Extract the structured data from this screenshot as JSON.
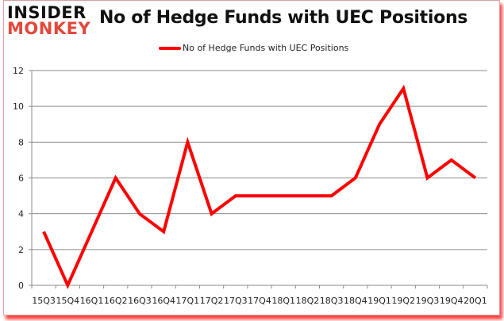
{
  "logo": {
    "line1": "INSIDER",
    "line2": "MONKEY"
  },
  "chart_data": {
    "type": "line",
    "title": "No of Hedge Funds with UEC Positions",
    "xlabel": "",
    "ylabel": "",
    "categories": [
      "15Q3",
      "15Q4",
      "16Q1",
      "16Q2",
      "16Q3",
      "16Q4",
      "17Q1",
      "17Q2",
      "17Q3",
      "17Q4",
      "18Q1",
      "18Q2",
      "18Q3",
      "18Q4",
      "19Q1",
      "19Q2",
      "19Q3",
      "19Q4",
      "20Q1"
    ],
    "series": [
      {
        "name": "No of Hedge Funds with UEC Positions",
        "color": "#ff0000",
        "values": [
          3,
          0,
          3,
          6,
          4,
          3,
          8,
          4,
          5,
          5,
          5,
          5,
          5,
          6,
          9,
          11,
          6,
          7,
          6
        ]
      }
    ],
    "ylim": [
      0,
      12
    ],
    "yticks": [
      0,
      2,
      4,
      6,
      8,
      10,
      12
    ],
    "grid": true,
    "legend_position": "top"
  }
}
